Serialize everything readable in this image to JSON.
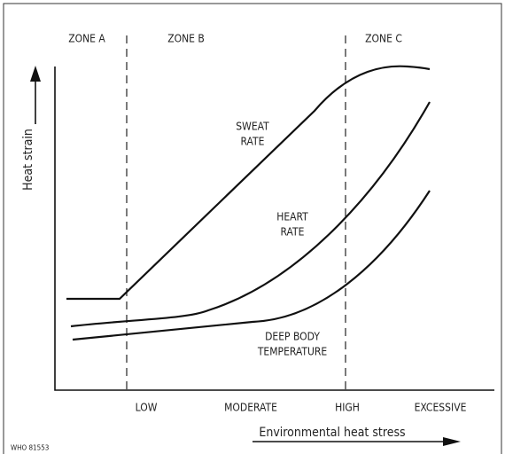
{
  "zones": [
    "ZONE A",
    "ZONE B",
    "ZONE C"
  ],
  "y_axis_label": "Heat strain",
  "x_axis_label": "Environmental heat stress",
  "x_categories": [
    "LOW",
    "MODERATE",
    "HIGH",
    "EXCESSIVE"
  ],
  "curves": [
    {
      "label": [
        "SWEAT",
        "RATE"
      ]
    },
    {
      "label": [
        "HEART",
        "RATE"
      ]
    },
    {
      "label": [
        "DEEP BODY",
        "TEMPERATURE"
      ]
    }
  ],
  "figure_id": "WHO 81553"
}
